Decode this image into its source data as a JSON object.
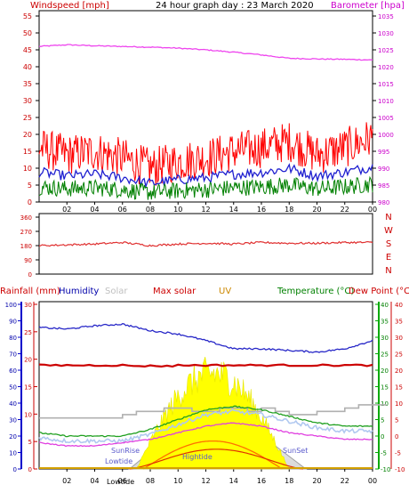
{
  "title": "24 hour graph day : 23 March 2020",
  "colors": {
    "wind": "#ff0000",
    "gust": "#e80000",
    "avg": "#2020d0",
    "green": "#008000",
    "baro": "#ee44ee",
    "dir": "#e03030",
    "humidity": "#2828c8",
    "rain": "#0000aa",
    "solar": "#b0b0b0",
    "maxsolar": "#cc0000",
    "uv": "#d4a000",
    "temp": "#20a020",
    "dew": "#ff2020",
    "lightblue": "#b0c8f0",
    "magenta": "#e040e0",
    "orange": "#ff7000",
    "yellow": "#ffff00"
  },
  "panel1": {
    "left_label": "Windspeed [mph]",
    "right_label": "Barometer [hpa]",
    "left_ticks": [
      "0",
      "5",
      "10",
      "15",
      "20",
      "25",
      "30",
      "35",
      "40",
      "45",
      "50",
      "55"
    ],
    "right_ticks": [
      "980",
      "985",
      "990",
      "995",
      "1000",
      "1005",
      "1010",
      "1015",
      "1020",
      "1025",
      "1030",
      "1035"
    ],
    "x_ticks": [
      "02",
      "04",
      "06",
      "08",
      "10",
      "12",
      "14",
      "16",
      "18",
      "20",
      "22",
      "00"
    ]
  },
  "panel2": {
    "left_ticks": [
      "0",
      "90",
      "180",
      "270",
      "360"
    ],
    "compass": [
      "N",
      "W",
      "S",
      "E",
      "N"
    ]
  },
  "panel3": {
    "labels": {
      "rainfall": "Rainfall (mm)",
      "humidity": "Humidity",
      "solar": "Solar",
      "maxsolar": "Max solar",
      "uv": "UV",
      "temp": "Temperature (°C)",
      "dew": "Dew Point (°C)"
    },
    "rain_ticks": [
      "0",
      "10",
      "20",
      "30",
      "40",
      "50",
      "60",
      "70",
      "80",
      "90",
      "100"
    ],
    "hum_ticks": [
      "0",
      "5",
      "10",
      "15",
      "20",
      "25",
      "30"
    ],
    "temp_ticks": [
      "-10",
      "-5",
      "0",
      "5",
      "10",
      "15",
      "20",
      "25",
      "30",
      "35",
      "40"
    ],
    "x_ticks": [
      "02",
      "04",
      "06",
      "08",
      "10",
      "12",
      "14",
      "16",
      "18",
      "20",
      "22",
      "00"
    ],
    "annotations": {
      "sunrise": "SunRise",
      "lowtide": "Lowtide",
      "lowtide2": "Lowtide",
      "hightide": "Hightide",
      "sunset": "SunSet"
    }
  },
  "chart_data": [
    {
      "type": "line",
      "title": "24 hour graph day : 23 March 2020",
      "xlabel": "",
      "ylabel": "Windspeed [mph]",
      "y2label": "Barometer [hpa]",
      "x_hours": [
        0,
        2,
        4,
        6,
        8,
        10,
        12,
        14,
        16,
        18,
        20,
        22,
        24
      ],
      "ylim": [
        0,
        55
      ],
      "y2lim": [
        980,
        1035
      ],
      "series": [
        {
          "name": "Windspeed [mph]",
          "values": [
            16,
            14,
            15,
            13,
            10,
            12,
            13,
            15,
            16,
            18,
            14,
            16,
            19
          ]
        },
        {
          "name": "Barometer [hpa]",
          "values": [
            1026,
            1026.5,
            1026.2,
            1026,
            1025.8,
            1025.5,
            1025,
            1024.3,
            1023.5,
            1022.5,
            1022.3,
            1022.2,
            1022
          ]
        }
      ]
    },
    {
      "type": "line",
      "ylim": [
        0,
        360
      ],
      "x_hours": [
        0,
        2,
        4,
        6,
        8,
        10,
        12,
        14,
        16,
        18,
        20,
        22,
        24
      ],
      "series": [
        {
          "values": [
            180,
            185,
            190,
            200,
            180,
            190,
            195,
            190,
            200,
            195,
            195,
            200,
            200
          ]
        }
      ]
    },
    {
      "type": "line",
      "x_hours": [
        0,
        2,
        4,
        6,
        8,
        10,
        12,
        14,
        16,
        18,
        20,
        22,
        24
      ],
      "series": [
        {
          "name": "Humidity",
          "axis": "left-outer",
          "ylim": [
            0,
            100
          ],
          "values": [
            86,
            85,
            87,
            88,
            84,
            82,
            78,
            73,
            73,
            72,
            71,
            73,
            78
          ]
        },
        {
          "name": "Temperature (°C)",
          "axis": "right",
          "ylim": [
            -10,
            40
          ],
          "values": [
            1,
            0,
            0,
            0,
            2,
            5,
            8,
            9,
            8,
            6,
            4,
            3,
            3
          ]
        },
        {
          "name": "Dew Point (°C)",
          "axis": "right",
          "ylim": [
            -10,
            40
          ],
          "values": [
            -2,
            -3,
            -3,
            -2,
            -1,
            1,
            3,
            4,
            3,
            1,
            0,
            -1,
            -1
          ]
        },
        {
          "name": "Solar",
          "axis": "left-inner",
          "ylim": [
            0,
            30
          ],
          "values": [
            15,
            15,
            15,
            15,
            15,
            15,
            16,
            16,
            16,
            15,
            15,
            15,
            15
          ]
        },
        {
          "name": "UV",
          "axis": "left-inner",
          "ylim": [
            0,
            30
          ],
          "values": [
            0,
            0,
            0,
            0,
            0,
            2,
            4,
            4,
            2,
            0,
            0,
            0,
            0
          ]
        }
      ]
    }
  ]
}
